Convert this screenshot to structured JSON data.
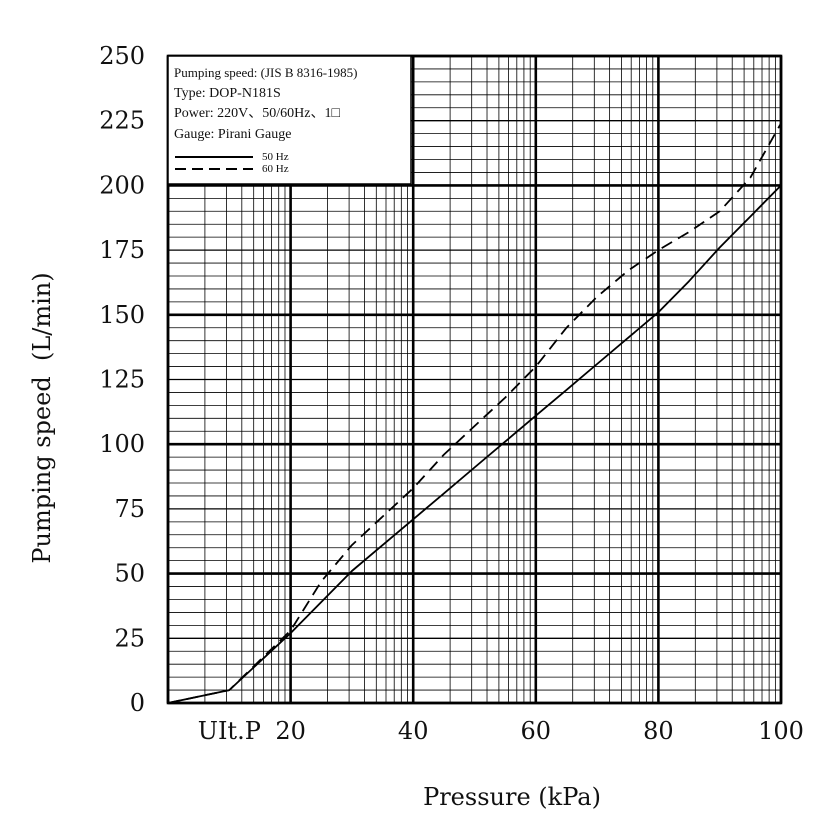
{
  "chart_data": {
    "type": "line",
    "title": "",
    "xlabel": "Pressure (kPa)",
    "ylabel": "Pumping speed  (L/min)",
    "xlim": [
      0,
      100
    ],
    "ylim": [
      0,
      250
    ],
    "x_tick_labels": [
      "UIt.P",
      "20",
      "40",
      "60",
      "80",
      "100"
    ],
    "x_tick_values": [
      10,
      20,
      40,
      60,
      80,
      100
    ],
    "y_ticks": [
      0,
      25,
      50,
      75,
      100,
      125,
      150,
      175,
      200,
      225,
      250
    ],
    "grid": true,
    "legend": {
      "placement": "top-left",
      "lines": [
        "Pumping speed: (JIS B 8316-1985)",
        "Type: DOP-N181S",
        "Power: 220V、50/60Hz、1□",
        "Gauge: Pirani Gauge"
      ]
    },
    "series": [
      {
        "name": "50 Hz",
        "style": "solid",
        "x": [
          0,
          10,
          20,
          30,
          40,
          45,
          50,
          55,
          60,
          65,
          70,
          75,
          80,
          85,
          90,
          95,
          100
        ],
        "y": [
          0,
          5,
          27,
          51,
          71,
          81,
          91,
          101,
          111,
          121,
          131,
          141,
          151,
          163,
          176,
          188,
          200
        ]
      },
      {
        "name": "60 Hz",
        "style": "dashed",
        "x": [
          0,
          10,
          20,
          25,
          30,
          40,
          45,
          50,
          55,
          60,
          65,
          70,
          75,
          80,
          85,
          90,
          95,
          100
        ],
        "y": [
          0,
          5,
          28,
          47,
          61,
          83,
          96,
          107,
          118,
          130,
          145,
          157,
          167,
          175,
          182,
          190,
          203,
          224
        ]
      }
    ]
  }
}
